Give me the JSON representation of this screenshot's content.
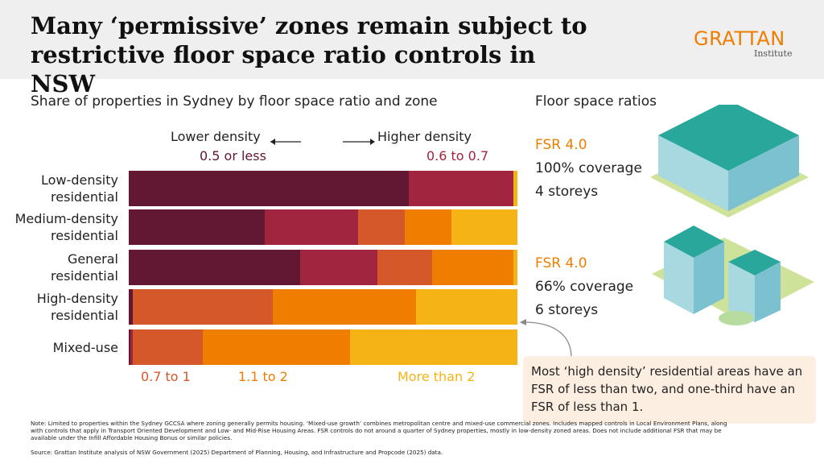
{
  "header": {
    "title": "Many ‘permissive’ zones remain subject to restrictive floor space ratio controls in NSW",
    "logo": "GRATTAN",
    "logo_sub": "Institute"
  },
  "chart_data": {
    "type": "bar",
    "orientation": "horizontal",
    "stacked": true,
    "title": "Share of properties in Sydney by floor space ratio and zone",
    "annotations": [
      "Lower density",
      "Higher density"
    ],
    "xlim": [
      0,
      100
    ],
    "categories": [
      "Low-density residential",
      "Medium-density residential",
      "General residential",
      "High-density residential",
      "Mixed-use"
    ],
    "series": [
      {
        "name": "0.5 or less",
        "color": "#621733",
        "values": [
          72,
          35,
          44,
          1,
          0.5
        ]
      },
      {
        "name": "0.6 to 0.7",
        "color": "#a1253e",
        "values": [
          27,
          24,
          20,
          0,
          0.5
        ]
      },
      {
        "name": "0.7 to 1",
        "color": "#d4582a",
        "values": [
          0,
          12,
          14,
          36,
          18
        ]
      },
      {
        "name": "1.1 to 2",
        "color": "#ef7d00",
        "values": [
          0,
          12,
          21,
          37,
          38
        ]
      },
      {
        "name": "More than 2",
        "color": "#f5b316",
        "values": [
          1,
          17,
          1,
          26,
          43
        ]
      }
    ]
  },
  "panel": {
    "title": "Floor space ratios",
    "examples": [
      {
        "fsr": "FSR 4.0",
        "coverage": "100% coverage",
        "storeys": "4 storeys"
      },
      {
        "fsr": "FSR 4.0",
        "coverage": "66% coverage",
        "storeys": "6 storeys"
      }
    ]
  },
  "callout": "Most ‘high density’ residential areas have an FSR of less than two, and one-third have an FSR of less than 1.",
  "note": "Note: Limited to properties within the Sydney GCCSA where zoning generally permits housing. ‘Mixed-use growth’ combines metropolitan centre and mixed-use commercial zones. Includes mapped controls in Local Environment Plans, along with controls that apply in Transport Oriented Development and Low- and Mid-Rise Housing Areas. FSR controls do not around a quarter of Sydney properties, mostly in low-density zoned areas. Does not include additional FSR that may be available under the Infill Affordable Housing Bonus or similar policies.",
  "source": "Source: Grattan Institute analysis of NSW Government (2025) Department of Planning, Housing, and Infrastructure and Propcode (2025) data."
}
